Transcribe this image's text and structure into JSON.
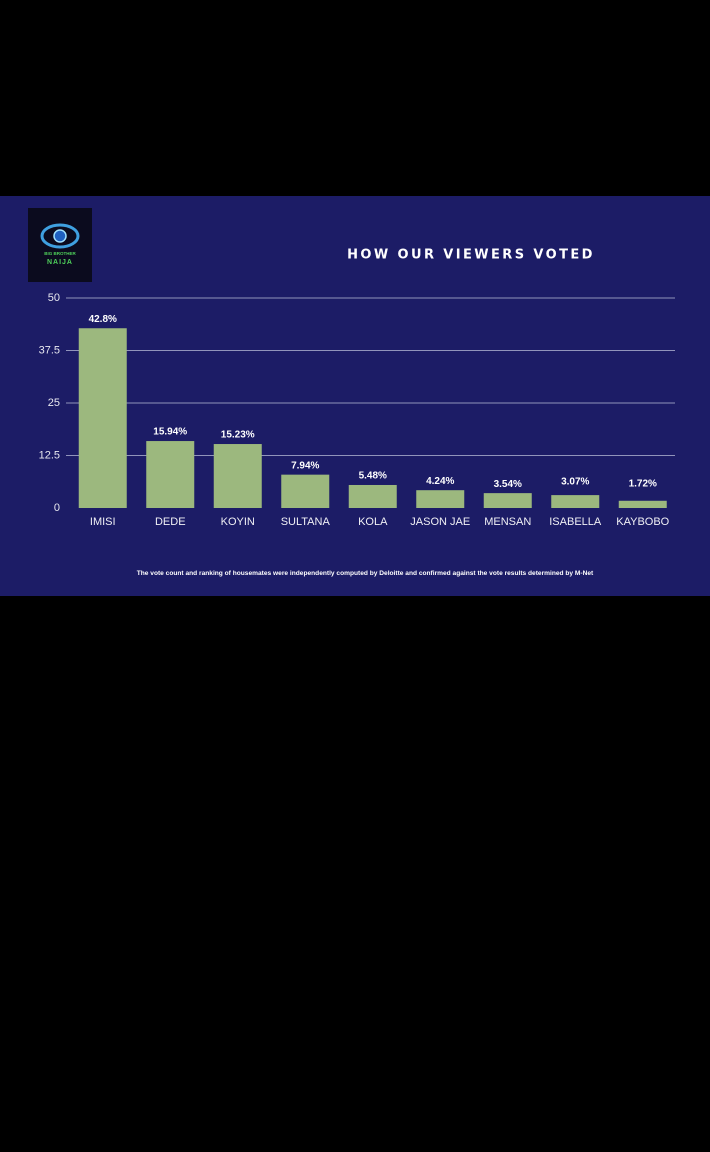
{
  "chart_data": {
    "type": "bar",
    "title": "HOW OUR VIEWERS VOTED",
    "logo": {
      "line1": "BIG BROTHER",
      "line2": "NAIJA"
    },
    "categories": [
      "IMISI",
      "DEDE",
      "KOYIN",
      "SULTANA",
      "KOLA",
      "JASON JAE",
      "MENSAN",
      "ISABELLA",
      "KAYBOBO"
    ],
    "values": [
      42.8,
      15.94,
      15.23,
      7.94,
      5.48,
      4.24,
      3.54,
      3.07,
      1.72
    ],
    "value_labels": [
      "42.8%",
      "15.94%",
      "15.23%",
      "7.94%",
      "5.48%",
      "4.24%",
      "3.54%",
      "3.07%",
      "1.72%"
    ],
    "color": "#9cb87e",
    "ylim": [
      0,
      50
    ],
    "yticks": [
      0,
      12.5,
      25,
      37.5,
      50
    ],
    "grid": true,
    "note": "The vote count and ranking of housemates were independently computed by Deloitte and confirmed against the vote results determined by M-Net"
  }
}
